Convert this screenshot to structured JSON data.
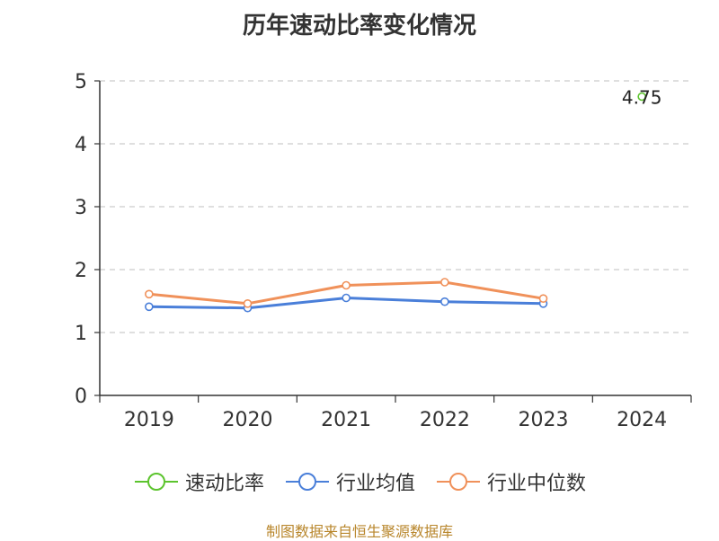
{
  "chart_data": {
    "type": "line",
    "title": "历年速动比率变化情况",
    "categories": [
      "2019",
      "2020",
      "2021",
      "2022",
      "2023",
      "2024"
    ],
    "ylim": [
      0,
      5
    ],
    "yticks": [
      0,
      1,
      2,
      3,
      4,
      5
    ],
    "grid": true,
    "legend_position": "bottom",
    "series": [
      {
        "name": "速动比率",
        "color": "#5cc42e",
        "values": [
          null,
          null,
          null,
          null,
          null,
          4.75
        ],
        "labels": [
          null,
          null,
          null,
          null,
          null,
          "4.75"
        ]
      },
      {
        "name": "行业均值",
        "color": "#4a7fd9",
        "values": [
          1.41,
          1.39,
          1.55,
          1.49,
          1.46,
          null
        ]
      },
      {
        "name": "行业中位数",
        "color": "#f0915a",
        "values": [
          1.61,
          1.46,
          1.75,
          1.8,
          1.54,
          null
        ]
      }
    ]
  },
  "source": "制图数据来自恒生聚源数据库"
}
